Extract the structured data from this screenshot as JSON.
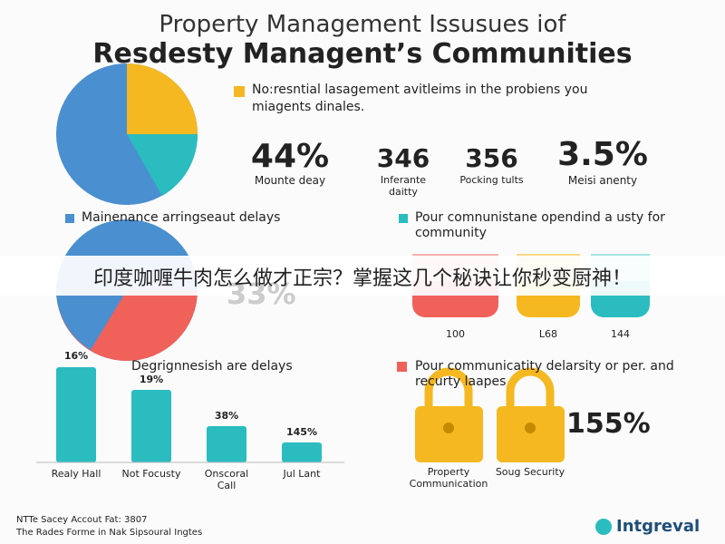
{
  "header": {
    "title_line1": "Property Management Issusues iof",
    "title_line2": "Resdesty Managent’s Communities"
  },
  "legend_top": "No:resntial lasagement avitleims in the probiens you miagents dinales.",
  "stats": [
    {
      "value": "44%",
      "label": "Mounte deay"
    },
    {
      "value": "346",
      "label": "Inferante daitty"
    },
    {
      "value": "356",
      "label": "Pocking tults"
    },
    {
      "value": "3.5%",
      "label": "Meisi anenty"
    }
  ],
  "legend_mid": [
    "Mainenance arringseaut delays",
    "Pour comnunistane opendind a usty for community"
  ],
  "banner": "印度咖喱牛肉怎么做才正宗？掌握这几个秘诀让你秒变厨神！",
  "pie_label": "33%",
  "cylinders": [
    "100",
    "L68",
    "144"
  ],
  "bars": [
    {
      "label": "16%",
      "category": "Realy Hall"
    },
    {
      "label": "19%",
      "category": "Not Focusty"
    },
    {
      "label": "38%",
      "category": "Onscoral Call"
    },
    {
      "label": "145%",
      "category": "Jul Lant"
    }
  ],
  "bars_title": "Degrignnesish are delays",
  "security_title": "Pour communicatity delarsity or per. and recurty laapes",
  "security_value": "155%",
  "locks": [
    "Property Communication",
    "Soug Security"
  ],
  "footer": {
    "line1": "NTTe Sacey Accout Fat: 3807",
    "line2": "The Rades Forme in Nak Sipsoural Ingtes",
    "logo": "Intgreval"
  }
}
